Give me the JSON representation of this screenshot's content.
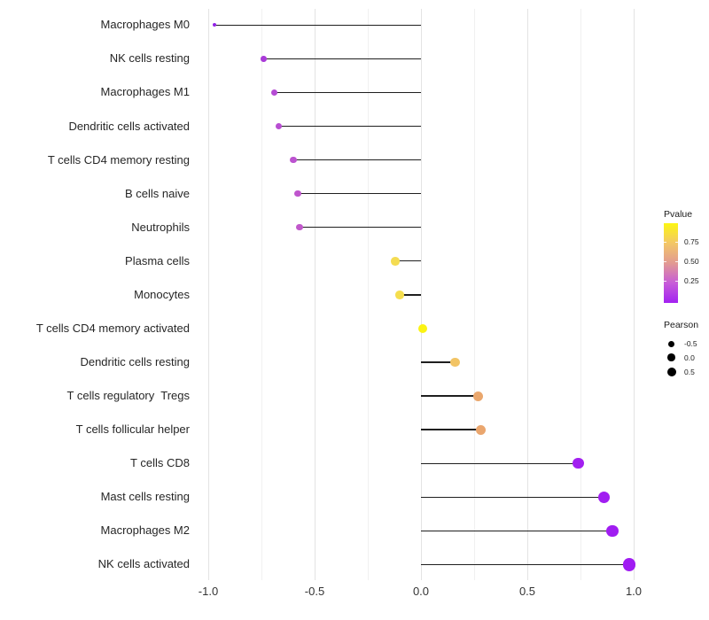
{
  "chart_data": {
    "type": "lollipop",
    "orientation": "horizontal",
    "title": "",
    "xlabel": "",
    "ylabel": "",
    "grid": true,
    "legend_position": "right",
    "x_axis": {
      "range": [
        -1.05,
        1.05
      ],
      "major_ticks": [
        -1.0,
        -0.5,
        0.0,
        0.5,
        1.0
      ],
      "tick_labels": [
        "-1.0",
        "-0.5",
        "0.0",
        "0.5",
        "1.0"
      ],
      "minor_ticks": [
        -0.75,
        -0.25,
        0.25,
        0.75
      ]
    },
    "series_encoding": {
      "x": "Pearson correlation",
      "color": "Pvalue (purple = low, yellow = high)",
      "size": "Pearson"
    },
    "points": [
      {
        "label": "Macrophages M0",
        "pearson": -0.97,
        "color": "#9223e6",
        "diameter": 4
      },
      {
        "label": "NK cells resting",
        "pearson": -0.74,
        "color": "#a93ad8",
        "diameter": 6.5
      },
      {
        "label": "Macrophages M1",
        "pearson": -0.69,
        "color": "#b54bd4",
        "diameter": 7
      },
      {
        "label": "Dendritic cells activated",
        "pearson": -0.67,
        "color": "#b84ed2",
        "diameter": 7
      },
      {
        "label": "T cells CD4 memory resting",
        "pearson": -0.6,
        "color": "#bc53d0",
        "diameter": 7.5
      },
      {
        "label": "B cells naive",
        "pearson": -0.58,
        "color": "#bf55cd",
        "diameter": 7.5
      },
      {
        "label": "Neutrophils",
        "pearson": -0.57,
        "color": "#c158cb",
        "diameter": 7.5
      },
      {
        "label": "Plasma cells",
        "pearson": -0.12,
        "color": "#f4dc52",
        "diameter": 9.5
      },
      {
        "label": "Monocytes",
        "pearson": -0.1,
        "color": "#f5de4e",
        "diameter": 9.5
      },
      {
        "label": "T cells CD4 memory activated",
        "pearson": 0.01,
        "color": "#fbf313",
        "diameter": 10
      },
      {
        "label": "Dendritic cells resting",
        "pearson": 0.16,
        "color": "#f2c465",
        "diameter": 10.5
      },
      {
        "label": "T cells regulatory  Tregs",
        "pearson": 0.27,
        "color": "#eaa76d",
        "diameter": 11
      },
      {
        "label": "T cells follicular helper",
        "pearson": 0.28,
        "color": "#eaa66e",
        "diameter": 11
      },
      {
        "label": "T cells CD8",
        "pearson": 0.74,
        "color": "#a21ff0",
        "diameter": 12.5
      },
      {
        "label": "Mast cells resting",
        "pearson": 0.86,
        "color": "#a11ef1",
        "diameter": 13.5
      },
      {
        "label": "Macrophages M2",
        "pearson": 0.9,
        "color": "#a01df1",
        "diameter": 13.5
      },
      {
        "label": "NK cells activated",
        "pearson": 0.98,
        "color": "#a01cf2",
        "diameter": 14.5
      }
    ],
    "legend": {
      "pvalue": {
        "title": "Pvalue",
        "tick_labels": [
          "0.75",
          "0.50",
          "0.25"
        ],
        "gradient_top_to_bottom": [
          "#fcf613",
          "#f3c766",
          "#e29a92",
          "#c75cd8",
          "#a321f1"
        ]
      },
      "pearson": {
        "title": "Pearson",
        "entries": [
          {
            "label": "-0.5",
            "diameter": 7
          },
          {
            "label": "0.0",
            "diameter": 8.7
          },
          {
            "label": "0.5",
            "diameter": 10
          }
        ],
        "dot_color": "#000000"
      }
    },
    "colors": {
      "background": "#ffffff",
      "stem": "#1f1f1f",
      "major_grid": "#e3e3e3",
      "minor_grid": "#f0f0f0",
      "axis_text": "#2e2e2e"
    }
  }
}
